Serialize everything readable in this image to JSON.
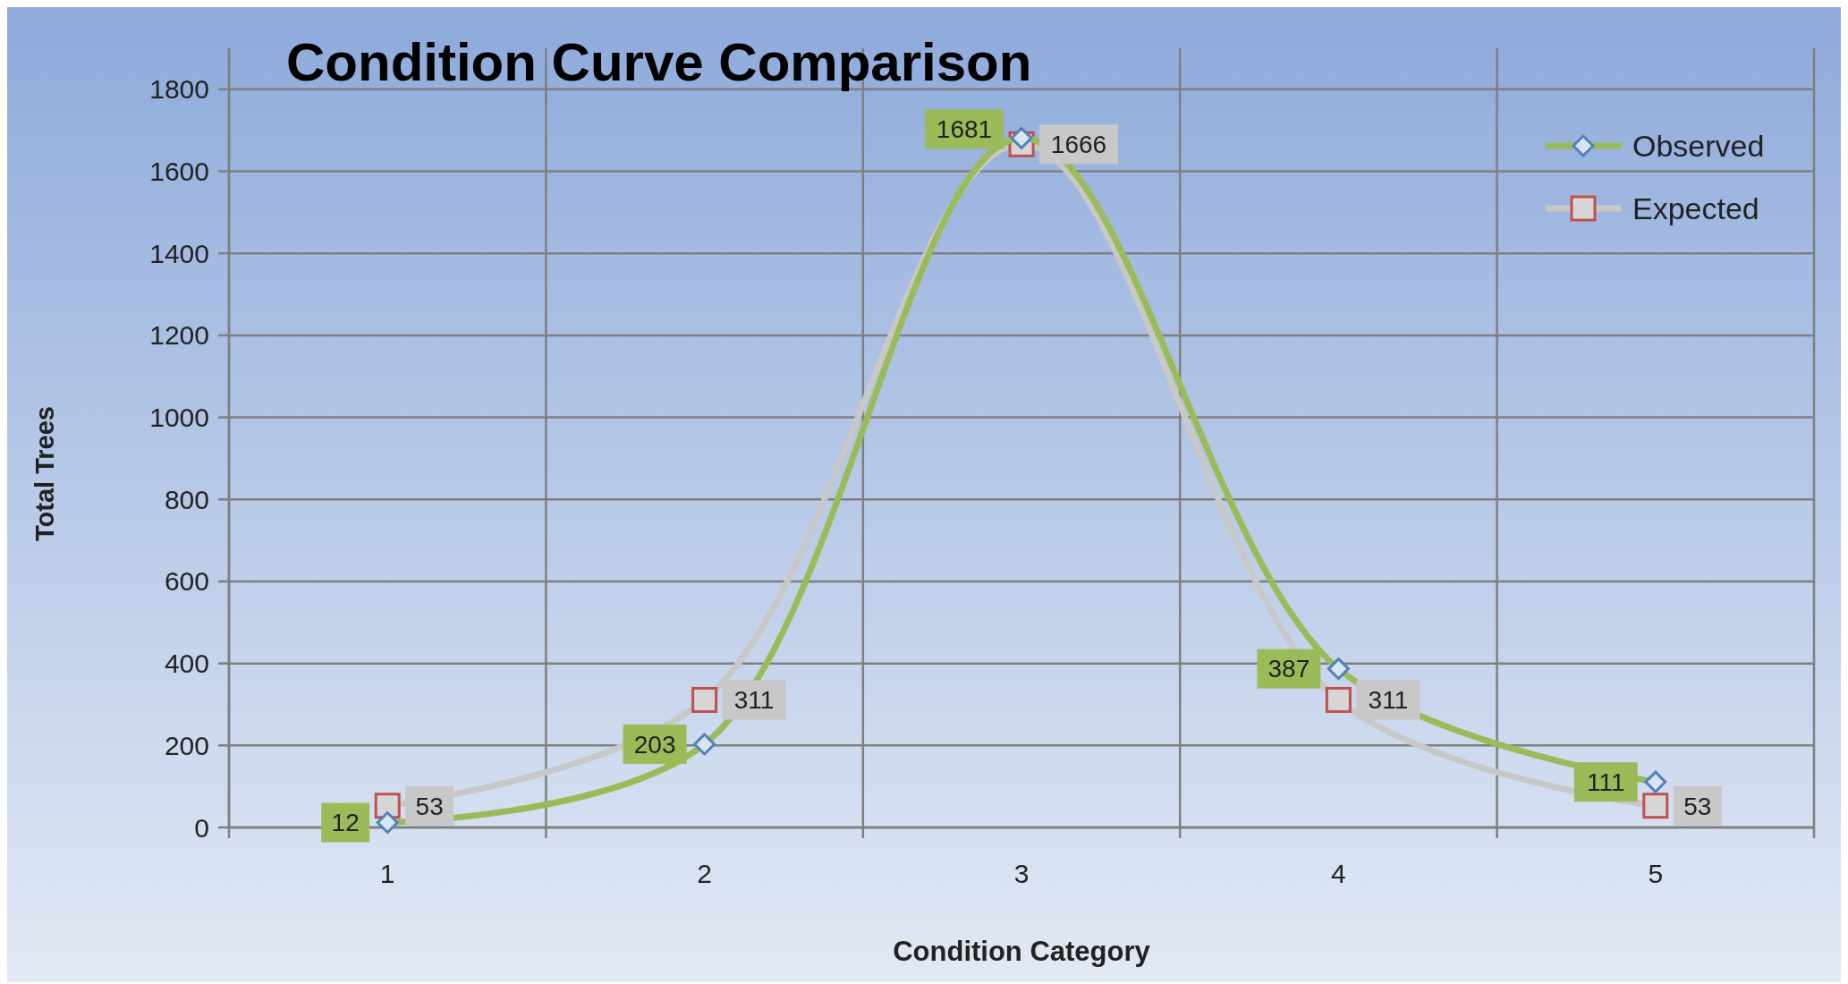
{
  "chart_data": {
    "type": "line",
    "title": "Condition Curve Comparison",
    "xlabel": "Condition Category",
    "ylabel": "Total Trees",
    "categories": [
      "1",
      "2",
      "3",
      "4",
      "5"
    ],
    "series": [
      {
        "name": "Observed",
        "color": "#9bbb59",
        "marker": "diamond",
        "values": [
          12,
          203,
          1681,
          387,
          111
        ]
      },
      {
        "name": "Expected",
        "color": "#c8c8c8",
        "marker": "square",
        "values": [
          53,
          311,
          1666,
          311,
          53
        ]
      }
    ],
    "ylim": [
      0,
      1900
    ],
    "yticks": [
      0,
      200,
      400,
      600,
      800,
      1000,
      1200,
      1400,
      1600,
      1800
    ],
    "grid": true,
    "legend": "top right",
    "data_labels": true
  }
}
